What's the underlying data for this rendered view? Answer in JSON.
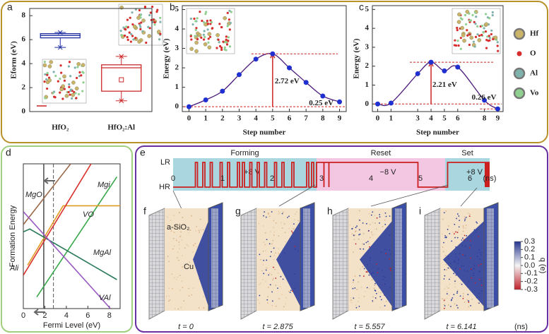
{
  "chart_data": [
    {
      "type": "box",
      "label": "a",
      "y_label": "Eform (eV)",
      "categories": [
        "HfO₂",
        "HfO₂:Al"
      ],
      "ylim": [
        0,
        8.6
      ],
      "yticks": [
        0,
        2,
        4,
        6,
        8
      ],
      "boxes": [
        {
          "min": 5.35,
          "q1": 6.15,
          "median": 6.35,
          "q3": 6.5,
          "max": 6.6,
          "color": "#1f2fa0"
        },
        {
          "min": 0.9,
          "q1": 1.7,
          "median": 3.65,
          "q3": 3.9,
          "max": 4.6,
          "mean": 2.65,
          "color": "#cc2a2a"
        }
      ]
    },
    {
      "type": "line",
      "label": "b",
      "x_label": "Step number",
      "y_label": "Energy (eV)",
      "x": [
        0,
        1,
        2,
        3,
        4,
        5,
        6,
        7,
        8,
        9
      ],
      "values": [
        0,
        0.35,
        0.8,
        1.65,
        2.45,
        2.72,
        2.0,
        1.25,
        0.55,
        0.25
      ],
      "color": "#1f2fd0",
      "line_color": "#4a1a7a",
      "xlim": [
        -0.4,
        9.4
      ],
      "ylim": [
        -0.25,
        5.2
      ],
      "xticks": [
        0,
        1,
        2,
        3,
        4,
        5,
        6,
        7,
        8,
        9
      ],
      "yticks": [
        0,
        1,
        2,
        3,
        4,
        5
      ],
      "annotations": [
        "2.72 eV",
        "0.25 eV"
      ]
    },
    {
      "type": "line",
      "label": "c",
      "x_label": "Step number",
      "y_label": "Energy (eV)",
      "x": [
        0,
        1,
        3,
        4,
        5,
        6,
        8,
        9
      ],
      "values": [
        0,
        0.05,
        1.6,
        2.21,
        1.75,
        1.95,
        0.2,
        -0.26
      ],
      "color": "#1f2fd0",
      "line_color": "#4a1a7a",
      "xlim": [
        -0.4,
        9.4
      ],
      "ylim": [
        -0.4,
        5.2
      ],
      "xticks": [
        0,
        1,
        3,
        4,
        5,
        6,
        8,
        9
      ],
      "yticks": [
        0,
        1,
        2,
        3,
        4,
        5
      ],
      "annotations": [
        "2.21 eV",
        "0.26 eV"
      ]
    },
    {
      "type": "multiline",
      "label": "d",
      "x_label": "Fermi Level (eV)",
      "y_label": "Formation Energy",
      "xlim": [
        0,
        9
      ],
      "xticks": [
        0,
        2,
        4,
        6,
        8
      ],
      "ylim": [
        0,
        10
      ],
      "vlines": [
        1.9,
        2.8
      ],
      "series": [
        {
          "name": "MgO",
          "color": "#9a6a4a",
          "x": [
            0,
            4.4
          ],
          "values": [
            5.8,
            10
          ]
        },
        {
          "name": "Mgi",
          "color": "#3aa84a",
          "x": [
            1.25,
            8.7
          ],
          "values": [
            0.8,
            9.1
          ]
        },
        {
          "name": "VO",
          "color": "#e09a20",
          "x": [
            0.4,
            3.7,
            9
          ],
          "values": [
            3.0,
            7.1,
            7.1
          ]
        },
        {
          "name": "MgAl",
          "color": "#2a7a5a",
          "x": [
            0,
            0.6,
            8.7
          ],
          "values": [
            5.3,
            5.5,
            2.0
          ]
        },
        {
          "name": "Ali",
          "color": "#d8302a",
          "x": [
            0,
            6.3
          ],
          "values": [
            2.3,
            10
          ]
        },
        {
          "name": "VAl",
          "color": "#9a5ac0",
          "x": [
            0,
            8.1
          ],
          "values": [
            6.7,
            0
          ]
        }
      ]
    },
    {
      "type": "timeline",
      "label": "e",
      "xlim": [
        0,
        6.6
      ],
      "xticks": [
        0,
        1,
        2,
        3,
        4,
        5,
        6
      ],
      "x_unit": "(ns)",
      "levels": [
        "LR",
        "HR"
      ],
      "phases": [
        {
          "name": "Forming",
          "start": 0,
          "end": 2.9,
          "voltage": "+8 V",
          "color": "#a9d6df"
        },
        {
          "name": "Reset",
          "start": 2.9,
          "end": 5.5,
          "voltage": "−8 V",
          "color": "#f3c6e2"
        },
        {
          "name": "Set",
          "start": 5.5,
          "end": 6.4,
          "voltage": "+8 V",
          "color": "#a9d6df"
        }
      ]
    }
  ],
  "legend_atoms": [
    {
      "name": "Hf",
      "color": "#c9b46a"
    },
    {
      "name": "O",
      "color": "#d62d2d"
    },
    {
      "name": "Al",
      "color": "#7fb2ad"
    },
    {
      "name": "Vo",
      "color": "#8fcf8f"
    }
  ],
  "snapshots": [
    {
      "label": "f",
      "time": "t = 0"
    },
    {
      "label": "g",
      "time": "t = 2.875"
    },
    {
      "label": "h",
      "time": "t = 5.557"
    },
    {
      "label": "i",
      "time": "t = 6.141"
    }
  ],
  "snapshot_labels": [
    "a-SiO₂",
    "Cu"
  ],
  "time_unit": "(ns)",
  "colorbar": {
    "label": "q (e)",
    "ticks": [
      0.3,
      0.2,
      0.1,
      {
        "value": 0,
        "label": "0.0"
      },
      -0.1,
      -0.2,
      -0.3
    ]
  }
}
